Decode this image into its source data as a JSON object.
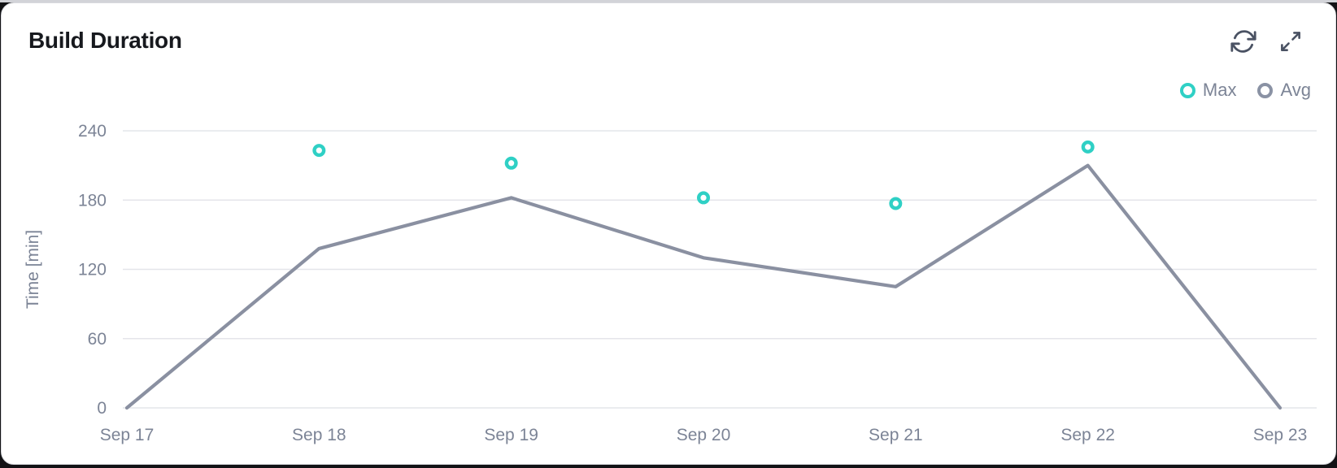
{
  "header": {
    "title": "Build Duration",
    "icons": [
      {
        "name": "refresh-icon"
      },
      {
        "name": "expand-icon"
      }
    ]
  },
  "colors": {
    "accent_teal": "#2fd0c5",
    "line_gray": "#8a90a1",
    "legend_avg_ring": "#8a92a4",
    "grid": "#e4e5ea",
    "axis_label": "#7c8496",
    "title_text": "#17191e",
    "icon": "#4a5263",
    "card_bg": "#ffffff",
    "card_border": "#d9dade",
    "page_bg": "#121215"
  },
  "chart_data": {
    "type": "line",
    "title": "Build Duration",
    "categories": [
      "Sep 17",
      "Sep 18",
      "Sep 19",
      "Sep 20",
      "Sep 21",
      "Sep 22",
      "Sep 23"
    ],
    "series": [
      {
        "name": "Max",
        "type": "scatter",
        "color": "#2fd0c5",
        "values": [
          null,
          223,
          212,
          182,
          177,
          226,
          null
        ]
      },
      {
        "name": "Avg",
        "type": "line",
        "color": "#8a90a1",
        "values": [
          0,
          138,
          182,
          130,
          105,
          210,
          0
        ]
      }
    ],
    "xlabel": "",
    "ylabel": "Time [min]",
    "ylim": [
      0,
      240
    ],
    "yticks": [
      0,
      60,
      120,
      180,
      240
    ],
    "grid": "horizontal",
    "legend_position": "top-right"
  }
}
